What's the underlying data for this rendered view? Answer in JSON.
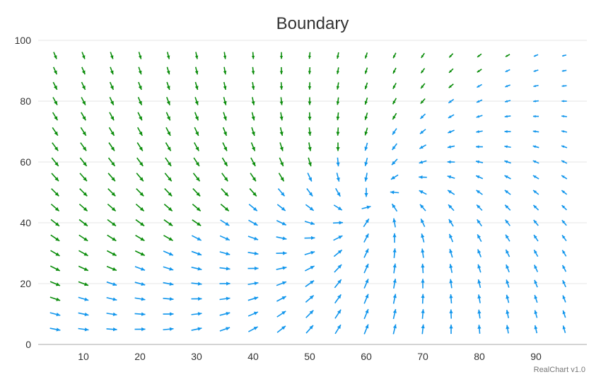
{
  "chart_data": {
    "type": "vector",
    "title": "Boundary",
    "xlabel": "",
    "ylabel": "",
    "xlim": [
      2,
      99
    ],
    "ylim": [
      0,
      100
    ],
    "x_ticks": [
      10,
      20,
      30,
      40,
      50,
      60,
      70,
      80,
      90
    ],
    "y_ticks": [
      0,
      20,
      40,
      60,
      80,
      100
    ],
    "grid": true,
    "legend": "none",
    "grid_x": [
      5,
      10,
      15,
      20,
      25,
      30,
      35,
      40,
      45,
      50,
      55,
      60,
      65,
      70,
      75,
      80,
      85,
      90,
      95
    ],
    "grid_y": [
      5,
      10,
      15,
      20,
      25,
      30,
      35,
      40,
      45,
      50,
      55,
      60,
      65,
      70,
      75,
      80,
      85,
      90,
      95
    ],
    "field": "arrows point toward the boundary line y = x; blue where y < x + 40 region nearer the lower-left, green toward upper-right; arrow length shrinks near the upper-right corner",
    "colors": {
      "lower": "#1296ec",
      "upper": "#0c8d0c"
    },
    "credit": "RealChart v1.0"
  }
}
